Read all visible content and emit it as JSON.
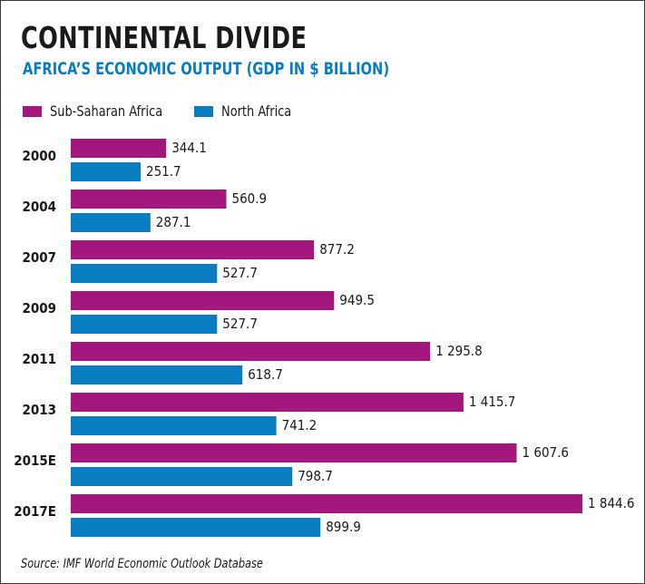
{
  "chart_data": {
    "type": "bar",
    "orientation": "horizontal",
    "title": "CONTINENTAL DIVIDE",
    "subtitle": "AFRICA’S ECONOMIC OUTPUT (GDP IN $ BILLION)",
    "categories": [
      "2000",
      "2004",
      "2007",
      "2009",
      "2011",
      "2013",
      "2015E",
      "2017E"
    ],
    "series": [
      {
        "name": "Sub-Saharan Africa",
        "color": "#a3177d",
        "values": [
          344.1,
          560.9,
          877.2,
          949.5,
          1295.8,
          1415.7,
          1607.6,
          1844.6
        ],
        "labels": [
          "344.1",
          "560.9",
          "877.2",
          "949.5",
          "1 295.8",
          "1 415.7",
          "1 607.6",
          "1 844.6"
        ]
      },
      {
        "name": "North Africa",
        "color": "#0a7dc2",
        "values": [
          251.7,
          287.1,
          527.7,
          527.7,
          618.7,
          741.2,
          798.7,
          899.9
        ],
        "labels": [
          "251.7",
          "287.1",
          "527.7",
          "527.7",
          "618.7",
          "741.2",
          "798.7",
          "899.9"
        ]
      }
    ],
    "xlim": [
      0,
      1844.6
    ],
    "legend": "top-left",
    "grid": false,
    "source": "Source: IMF World Economic Outlook Database"
  }
}
